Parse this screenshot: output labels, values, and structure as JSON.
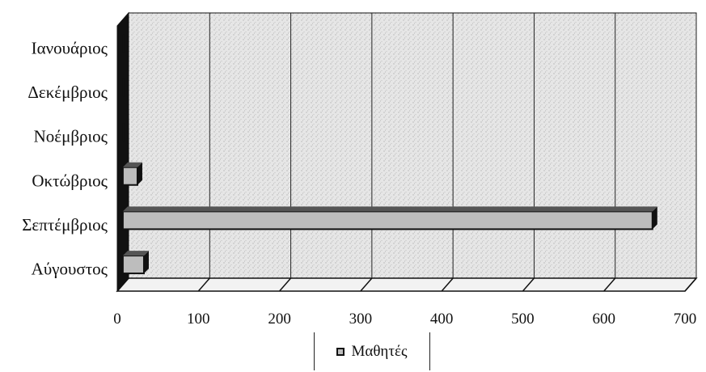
{
  "chart_data": {
    "type": "bar",
    "orientation": "horizontal",
    "categories": [
      "Αύγουστος",
      "Σεπτέμβριος",
      "Οκτώβριος",
      "Νοέμβριος",
      "Δεκέμβριος",
      "Ιανουάριος"
    ],
    "series": [
      {
        "name": "Μαθητές",
        "values": [
          28,
          655,
          20,
          0,
          0,
          0
        ]
      }
    ],
    "xlim": [
      0,
      700
    ],
    "xticks": [
      0,
      100,
      200,
      300,
      400,
      500,
      600,
      700
    ],
    "grid": true,
    "legend_position": "bottom",
    "style": "3d",
    "colors": {
      "bar": "#bdbdbd",
      "plot_bg": "#dcdcdc"
    }
  }
}
